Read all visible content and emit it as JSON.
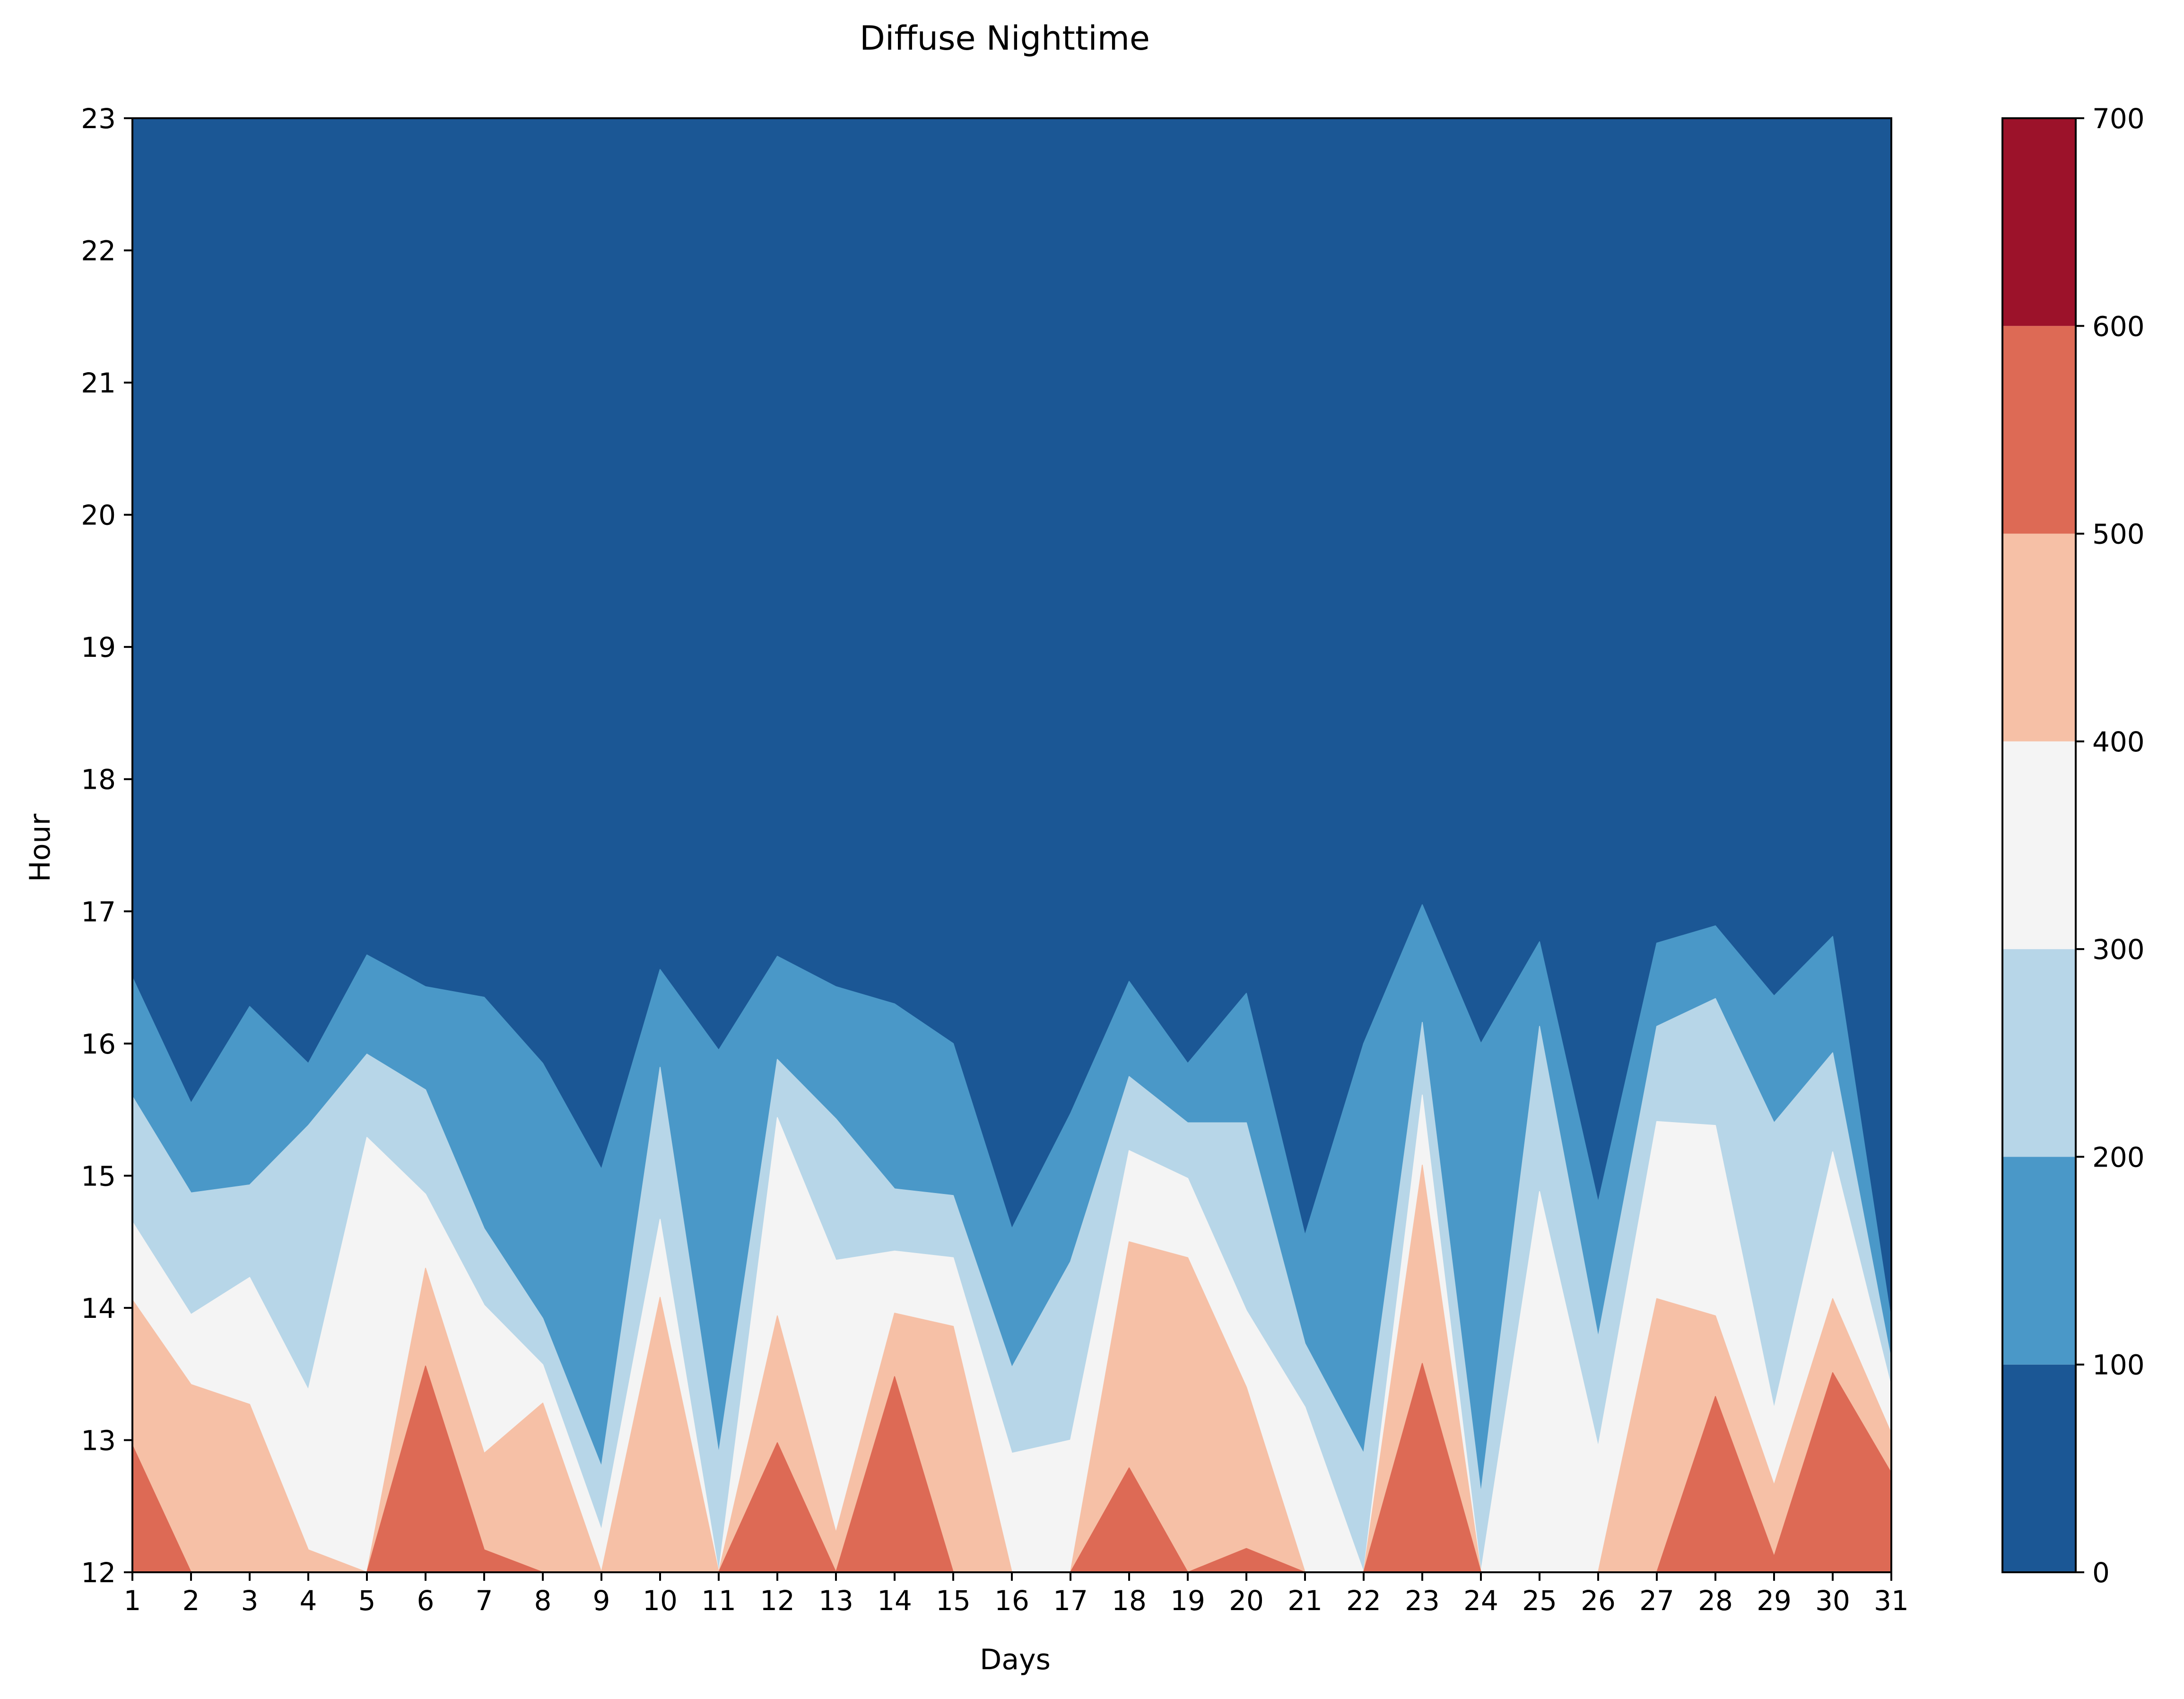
{
  "chart_data": {
    "type": "heatmap",
    "subtype": "filled-contour",
    "title": "Diffuse Nighttime",
    "xlabel": "Days",
    "ylabel": "Hour",
    "xlim": [
      1,
      31
    ],
    "ylim": [
      12,
      23
    ],
    "x_ticks": [
      1,
      2,
      3,
      4,
      5,
      6,
      7,
      8,
      9,
      10,
      11,
      12,
      13,
      14,
      15,
      16,
      17,
      18,
      19,
      20,
      21,
      22,
      23,
      24,
      25,
      26,
      27,
      28,
      29,
      30,
      31
    ],
    "y_ticks": [
      12,
      13,
      14,
      15,
      16,
      17,
      18,
      19,
      20,
      21,
      22,
      23
    ],
    "colorbar": {
      "levels": [
        0,
        100,
        200,
        300,
        400,
        500,
        600,
        700
      ],
      "tick_labels": [
        "0",
        "100",
        "200",
        "300",
        "400",
        "500",
        "600",
        "700"
      ],
      "colors": [
        "#1b5795",
        "#4a98c8",
        "#b7d6e8",
        "#f4f4f4",
        "#f6c0a6",
        "#dd6a55",
        "#9c122a"
      ]
    },
    "grid": false,
    "contour_boundaries_hour": {
      "days": [
        1,
        2,
        3,
        4,
        5,
        6,
        7,
        8,
        9,
        10,
        11,
        12,
        13,
        14,
        15,
        16,
        17,
        18,
        19,
        20,
        21,
        22,
        23,
        24,
        25,
        26,
        27,
        28,
        29,
        30,
        31
      ],
      "level_100": [
        16.5,
        15.55,
        16.28,
        15.85,
        16.67,
        16.43,
        16.35,
        15.85,
        15.05,
        16.56,
        15.95,
        16.66,
        16.43,
        16.3,
        16.0,
        14.6,
        15.47,
        16.47,
        15.85,
        16.38,
        14.55,
        16.0,
        17.05,
        16.0,
        16.77,
        14.8,
        16.76,
        16.89,
        16.36,
        16.81,
        13.9
      ],
      "level_200": [
        15.6,
        14.87,
        14.93,
        15.38,
        15.92,
        15.65,
        14.6,
        13.92,
        12.8,
        15.82,
        12.9,
        15.88,
        15.43,
        14.9,
        14.85,
        13.55,
        14.35,
        15.75,
        15.4,
        15.4,
        13.73,
        12.9,
        16.16,
        12.6,
        16.13,
        13.78,
        16.13,
        16.34,
        15.4,
        15.93,
        13.6
      ],
      "level_300": [
        14.65,
        13.95,
        14.23,
        13.38,
        15.29,
        14.86,
        14.02,
        13.57,
        12.32,
        14.67,
        12.0,
        15.44,
        14.36,
        14.43,
        14.38,
        12.9,
        13.0,
        15.19,
        14.98,
        13.98,
        13.25,
        12.0,
        15.61,
        12.0,
        14.88,
        12.95,
        15.41,
        15.38,
        13.24,
        15.18,
        13.4
      ],
      "level_400": [
        14.06,
        13.42,
        13.27,
        12.17,
        12.0,
        14.3,
        12.9,
        13.28,
        12.0,
        14.08,
        12.0,
        13.94,
        12.3,
        13.96,
        13.86,
        12.0,
        12.0,
        14.5,
        14.38,
        13.4,
        12.0,
        12.0,
        15.08,
        12.0,
        12.0,
        12.0,
        14.07,
        13.94,
        12.66,
        14.07,
        13.05
      ],
      "level_500": [
        12.96,
        12.0,
        12.0,
        12.0,
        12.0,
        13.56,
        12.17,
        12.0,
        12.0,
        12.0,
        12.0,
        12.98,
        12.0,
        13.48,
        12.0,
        12.0,
        12.0,
        12.79,
        12.0,
        12.18,
        12.0,
        12.0,
        13.58,
        12.0,
        12.0,
        12.0,
        12.0,
        13.33,
        12.12,
        13.51,
        12.75
      ]
    }
  }
}
